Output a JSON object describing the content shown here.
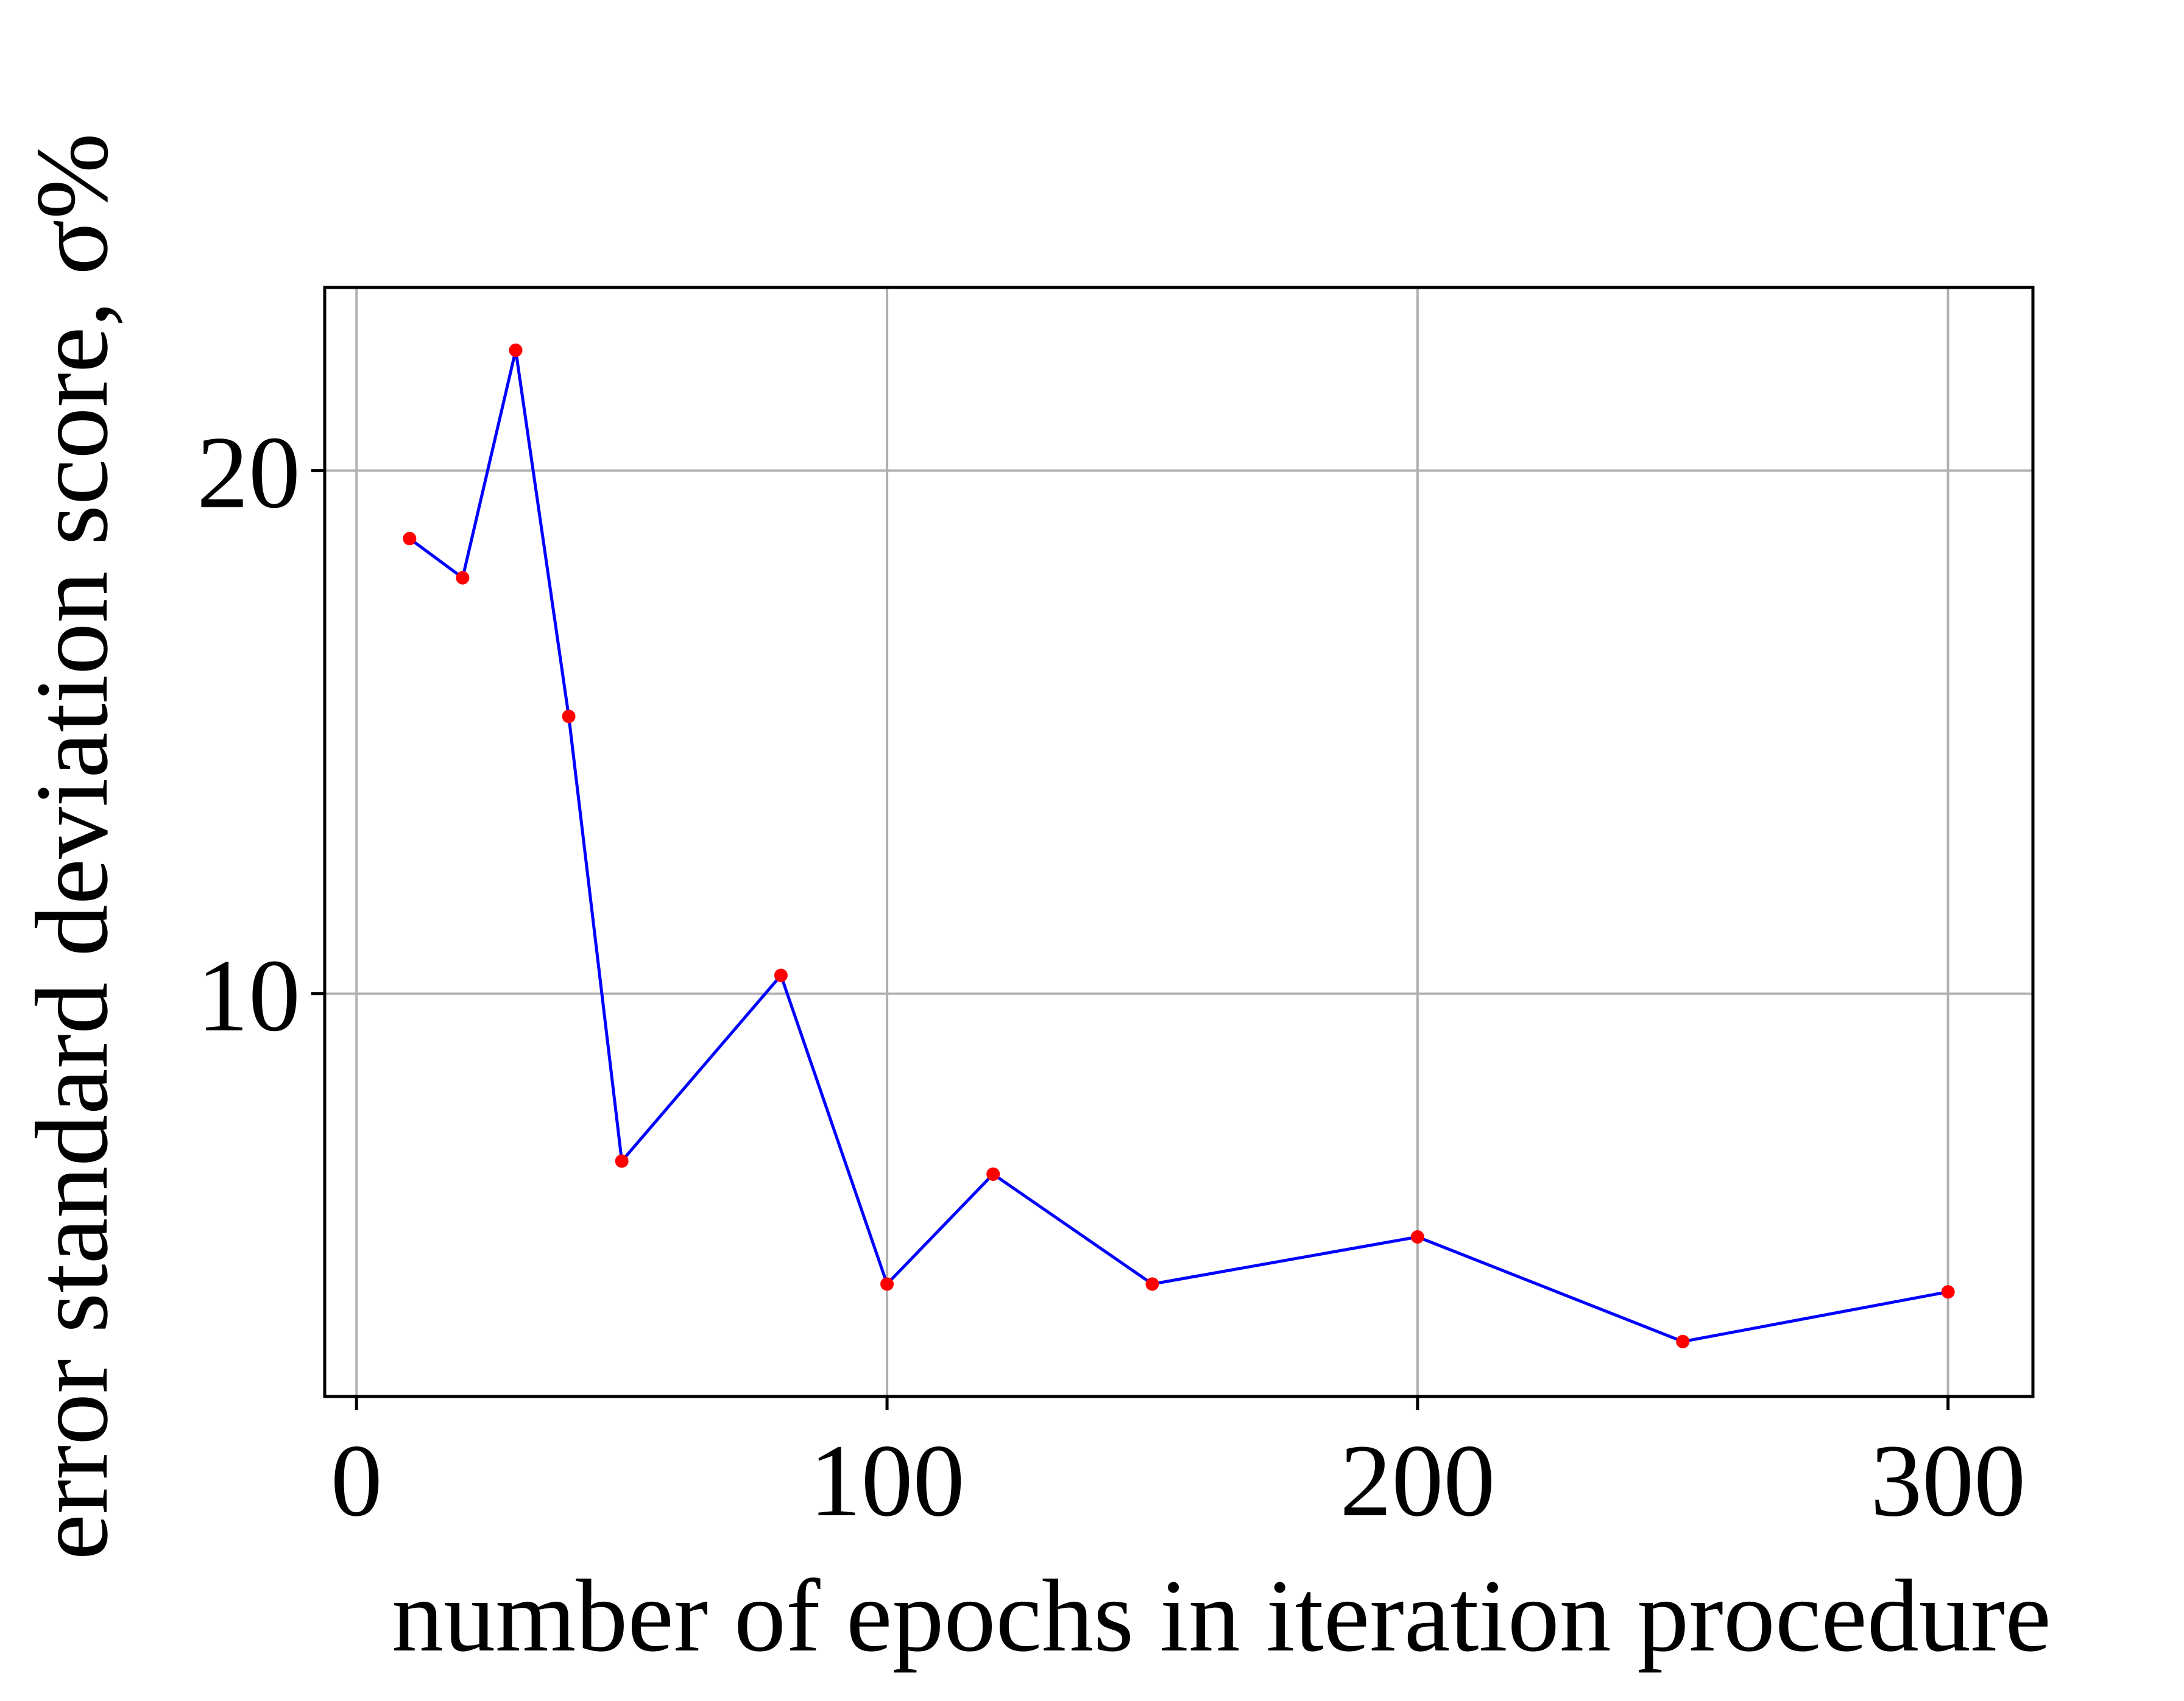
{
  "chart_data": {
    "type": "line",
    "title": "",
    "xlabel": "number of epochs in iteration procedure",
    "ylabel": "error standard deviation score, σ%",
    "xlim": [
      -6,
      316
    ],
    "ylim": [
      2.3,
      23.5
    ],
    "x_ticks": [
      0,
      100,
      200,
      300
    ],
    "y_ticks": [
      10,
      20
    ],
    "grid": true,
    "legend": "none",
    "series": [
      {
        "x": [
          10,
          20,
          30,
          40,
          50,
          80,
          100,
          120,
          150,
          200,
          250,
          300
        ],
        "y": [
          18.7,
          17.95,
          22.3,
          15.3,
          6.8,
          10.35,
          4.45,
          6.55,
          4.45,
          5.35,
          3.35,
          4.3
        ],
        "line_color": "#0000ff",
        "marker_color": "#ff0000"
      }
    ]
  },
  "colors": {
    "grid": "#b0b0b0",
    "axes": "#000000",
    "line": "#0000ff",
    "marker": "#ff0000"
  }
}
